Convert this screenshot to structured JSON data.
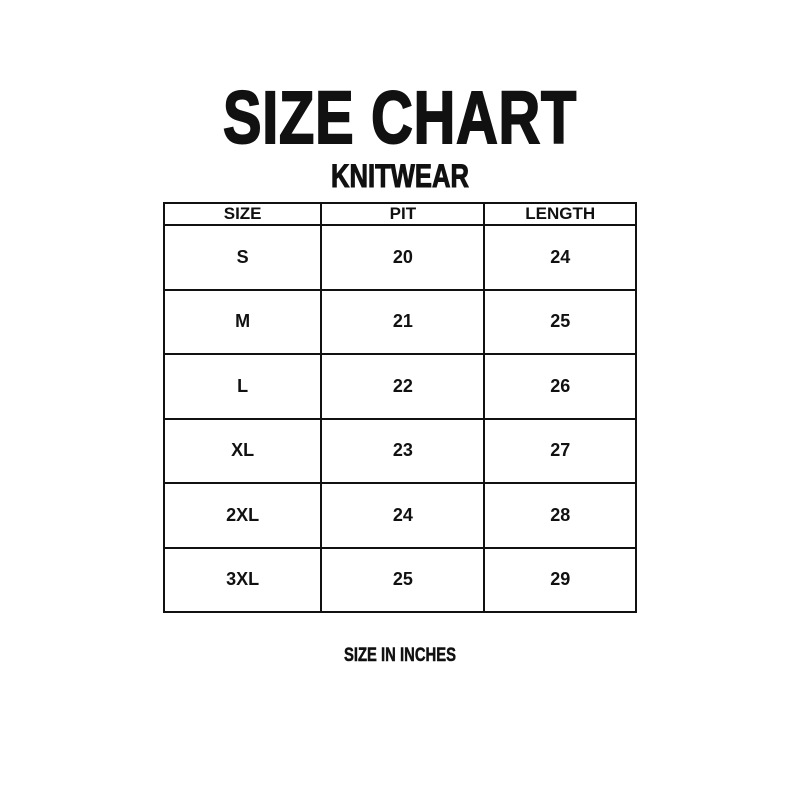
{
  "title": "SIZE CHART",
  "subtitle": "KNITWEAR",
  "table": {
    "headers": [
      "SIZE",
      "PIT",
      "LENGTH"
    ],
    "rows": [
      [
        "S",
        "20",
        "24"
      ],
      [
        "M",
        "21",
        "25"
      ],
      [
        "L",
        "22",
        "26"
      ],
      [
        "XL",
        "23",
        "27"
      ],
      [
        "2XL",
        "24",
        "28"
      ],
      [
        "3XL",
        "25",
        "29"
      ]
    ]
  },
  "footer": "SIZE IN INCHES"
}
